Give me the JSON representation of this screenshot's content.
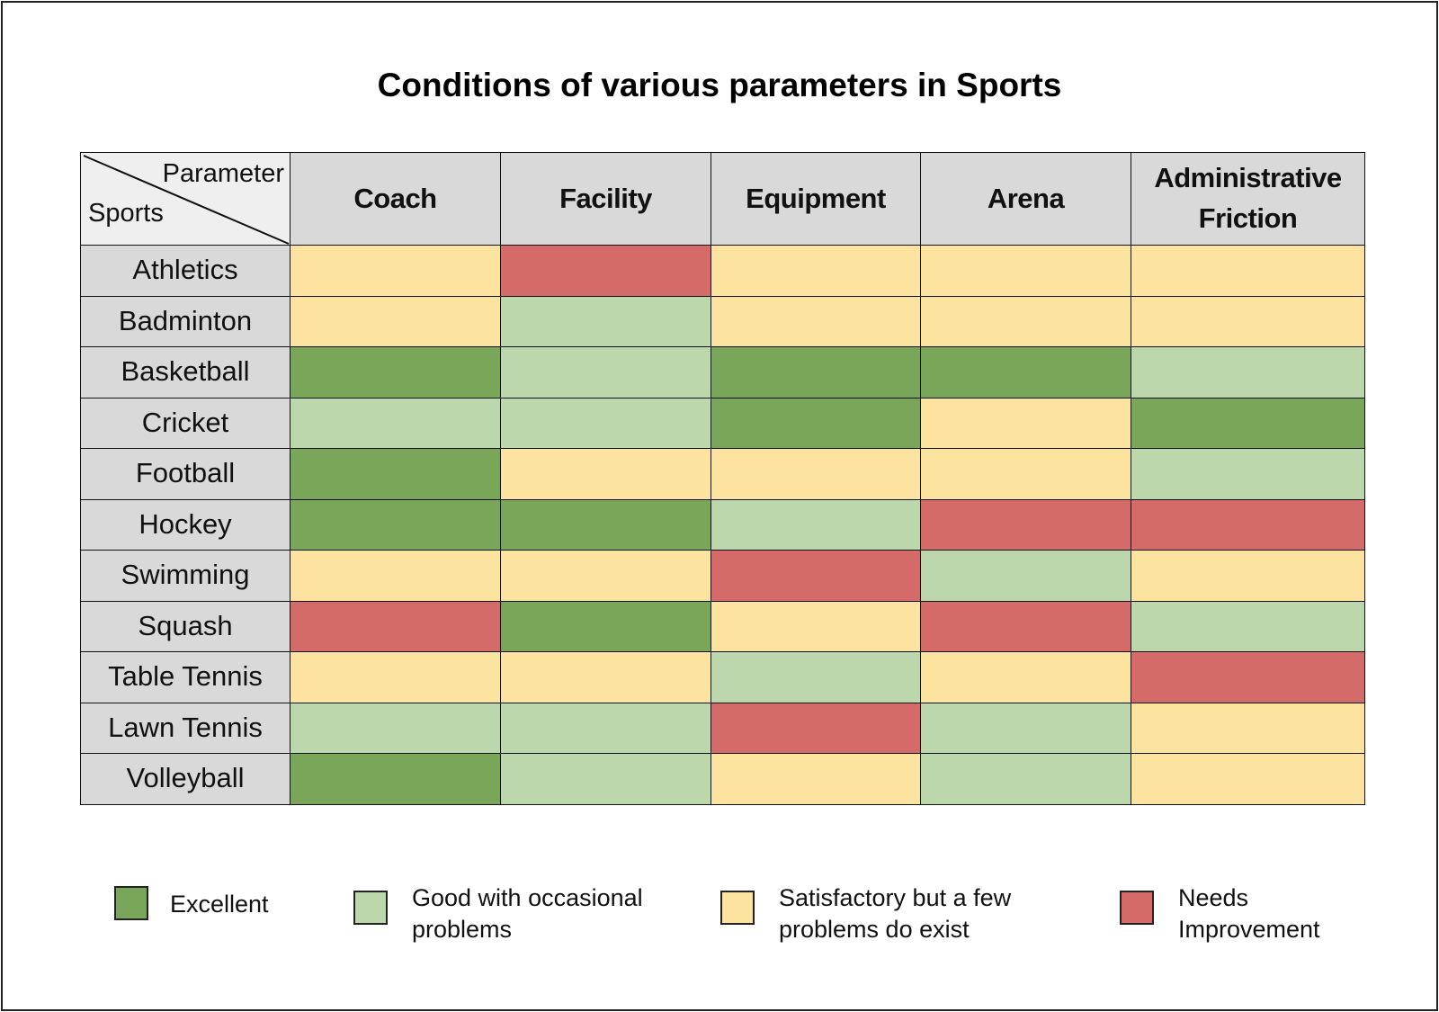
{
  "chart_data": {
    "type": "heatmap",
    "title": "Conditions of various parameters in Sports",
    "corner": {
      "column_axis": "Parameter",
      "row_axis": "Sports"
    },
    "columns": [
      "Coach",
      "Facility",
      "Equipment",
      "Arena",
      "Administrative Friction"
    ],
    "rows": [
      "Athletics",
      "Badminton",
      "Basketball",
      "Cricket",
      "Football",
      "Hockey",
      "Swimming",
      "Squash",
      "Table Tennis",
      "Lawn Tennis",
      "Volleyball"
    ],
    "values": [
      [
        "Satisfactory",
        "Needs Improvement",
        "Satisfactory",
        "Satisfactory",
        "Satisfactory"
      ],
      [
        "Satisfactory",
        "Good",
        "Satisfactory",
        "Satisfactory",
        "Satisfactory"
      ],
      [
        "Excellent",
        "Good",
        "Excellent",
        "Excellent",
        "Good"
      ],
      [
        "Good",
        "Good",
        "Excellent",
        "Satisfactory",
        "Excellent"
      ],
      [
        "Excellent",
        "Satisfactory",
        "Satisfactory",
        "Satisfactory",
        "Good"
      ],
      [
        "Excellent",
        "Excellent",
        "Good",
        "Needs Improvement",
        "Needs Improvement"
      ],
      [
        "Satisfactory",
        "Satisfactory",
        "Needs Improvement",
        "Good",
        "Satisfactory"
      ],
      [
        "Needs Improvement",
        "Excellent",
        "Satisfactory",
        "Needs Improvement",
        "Good"
      ],
      [
        "Satisfactory",
        "Satisfactory",
        "Good",
        "Satisfactory",
        "Needs Improvement"
      ],
      [
        "Good",
        "Good",
        "Needs Improvement",
        "Good",
        "Satisfactory"
      ],
      [
        "Excellent",
        "Good",
        "Satisfactory",
        "Good",
        "Satisfactory"
      ]
    ],
    "legend": [
      {
        "key": "Excellent",
        "label": "Excellent",
        "color": "#7aa65a"
      },
      {
        "key": "Good",
        "label": "Good with occasional problems",
        "color": "#bdd7ad"
      },
      {
        "key": "Satisfactory",
        "label": "Satisfactory but a few problems do exist",
        "color": "#fce4a0"
      },
      {
        "key": "Needs Improvement",
        "label": "Needs Improvement",
        "color": "#d46b68"
      }
    ],
    "legend_position": "bottom"
  }
}
